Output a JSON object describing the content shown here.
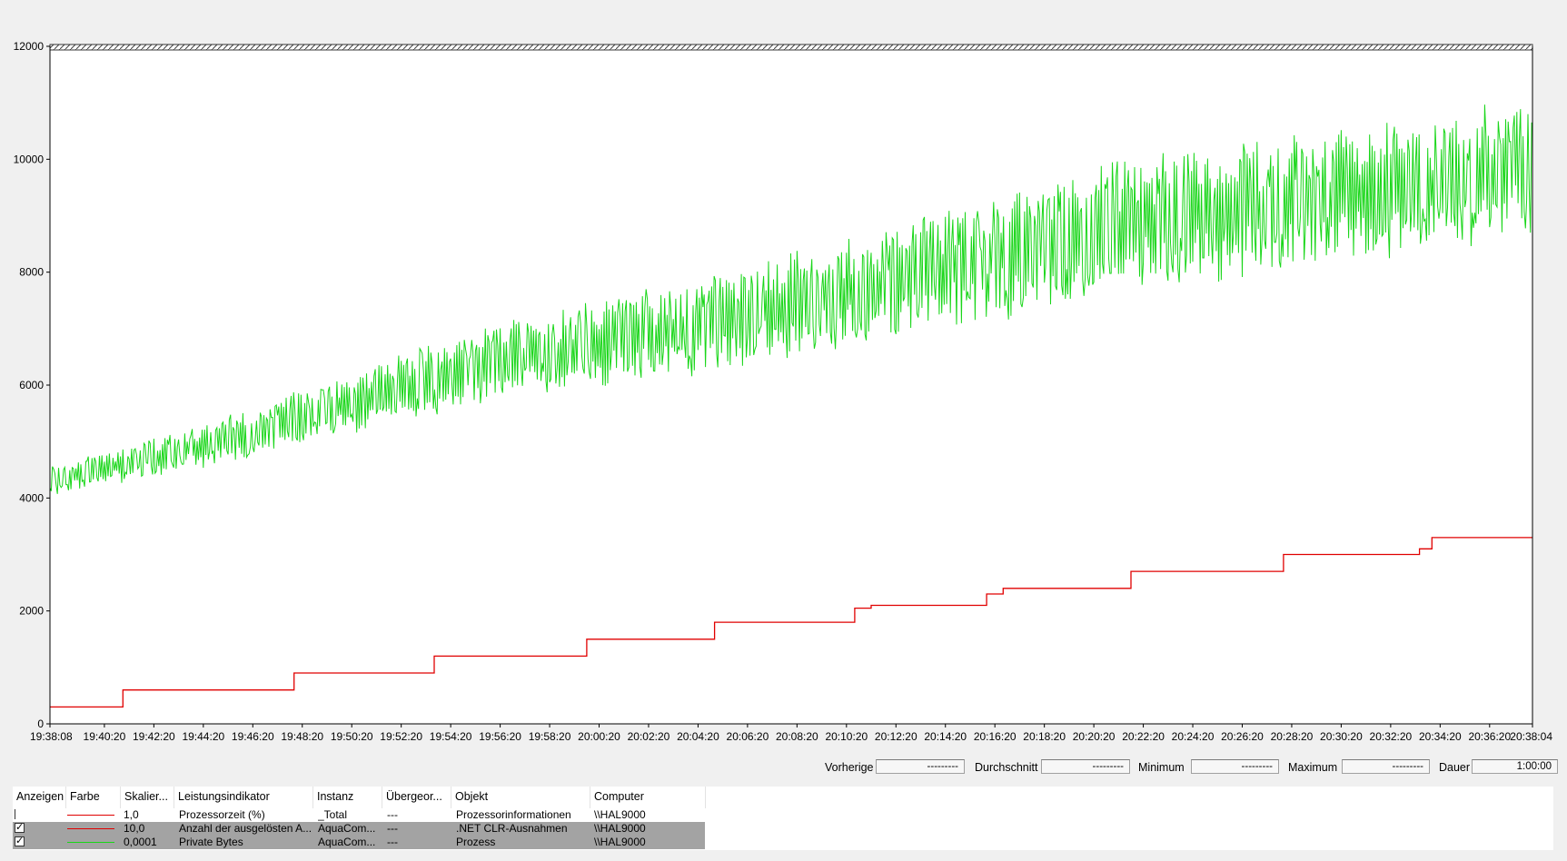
{
  "chart_data": {
    "type": "line",
    "y_ticks": [
      "0",
      "2000",
      "4000",
      "6000",
      "8000",
      "10000",
      "12000"
    ],
    "ylim": [
      0,
      12000
    ],
    "x_ticks": [
      "19:38:08",
      "19:40:20",
      "19:42:20",
      "19:44:20",
      "19:46:20",
      "19:48:20",
      "19:50:20",
      "19:52:20",
      "19:54:20",
      "19:56:20",
      "19:58:20",
      "20:00:20",
      "20:02:20",
      "20:04:20",
      "20:06:20",
      "20:08:20",
      "20:10:20",
      "20:12:20",
      "20:14:20",
      "20:16:20",
      "20:18:20",
      "20:20:20",
      "20:22:20",
      "20:24:20",
      "20:26:20",
      "20:28:20",
      "20:30:20",
      "20:32:20",
      "20:34:20",
      "20:36:20",
      "20:38:04"
    ],
    "xlim": [
      "19:38:08",
      "20:38:04"
    ],
    "grid": false,
    "series": [
      {
        "name": "Anzahl der ausgelösten A...",
        "color": "#e00000",
        "step_points": [
          [
            "19:38:08",
            300
          ],
          [
            "19:41:05",
            300
          ],
          [
            "19:41:05",
            600
          ],
          [
            "19:48:00",
            600
          ],
          [
            "19:48:00",
            900
          ],
          [
            "19:53:40",
            900
          ],
          [
            "19:53:40",
            1200
          ],
          [
            "19:59:50",
            1200
          ],
          [
            "19:59:50",
            1500
          ],
          [
            "20:05:00",
            1500
          ],
          [
            "20:05:00",
            1800
          ],
          [
            "20:10:40",
            1800
          ],
          [
            "20:10:40",
            2050
          ],
          [
            "20:11:20",
            2050
          ],
          [
            "20:11:20",
            2100
          ],
          [
            "20:16:00",
            2100
          ],
          [
            "20:16:00",
            2300
          ],
          [
            "20:16:40",
            2300
          ],
          [
            "20:16:40",
            2400
          ],
          [
            "20:21:50",
            2400
          ],
          [
            "20:21:50",
            2700
          ],
          [
            "20:28:00",
            2700
          ],
          [
            "20:28:00",
            3000
          ],
          [
            "20:33:30",
            3000
          ],
          [
            "20:33:30",
            3100
          ],
          [
            "20:34:00",
            3100
          ],
          [
            "20:34:00",
            3300
          ],
          [
            "20:38:04",
            3300
          ]
        ]
      },
      {
        "name": "Private Bytes",
        "color": "#19d619",
        "trend": [
          [
            "19:38:08",
            4300,
            250
          ],
          [
            "19:46:00",
            5100,
            400
          ],
          [
            "19:52:00",
            5900,
            550
          ],
          [
            "19:57:00",
            6500,
            650
          ],
          [
            "20:04:00",
            7000,
            800
          ],
          [
            "20:10:00",
            7600,
            900
          ],
          [
            "20:16:00",
            8200,
            1000
          ],
          [
            "20:22:00",
            8900,
            1050
          ],
          [
            "20:28:00",
            9200,
            1150
          ],
          [
            "20:33:00",
            9500,
            1100
          ],
          [
            "20:38:04",
            9900,
            1100
          ]
        ]
      }
    ]
  },
  "stats": {
    "previous_label": "Vorherige",
    "previous_value": "---------",
    "average_label": "Durchschnitt",
    "average_value": "---------",
    "minimum_label": "Minimum",
    "minimum_value": "---------",
    "maximum_label": "Maximum",
    "maximum_value": "---------",
    "duration_label": "Dauer",
    "duration_value": "1:00:00"
  },
  "counter_list": {
    "columns": [
      "Anzeigen",
      "Farbe",
      "Skalier...",
      "Leistungsindikator",
      "Instanz",
      "Übergeor...",
      "Objekt",
      "Computer"
    ],
    "rows": [
      {
        "checked": false,
        "selected": false,
        "color": "#e00000",
        "scale": "1,0",
        "counter": "Prozessorzeit (%)",
        "instance": "_Total",
        "parent": "---",
        "object": "Prozessorinformationen",
        "computer": "\\\\HAL9000"
      },
      {
        "checked": true,
        "selected": true,
        "color": "#e00000",
        "scale": "10,0",
        "counter": "Anzahl der ausgelösten A...",
        "instance": "AquaCom...",
        "parent": "---",
        "object": ".NET CLR-Ausnahmen",
        "computer": "\\\\HAL9000"
      },
      {
        "checked": true,
        "selected": true,
        "color": "#19d619",
        "scale": "0,0001",
        "counter": "Private Bytes",
        "instance": "AquaCom...",
        "parent": "---",
        "object": "Prozess",
        "computer": "\\\\HAL9000"
      }
    ]
  }
}
